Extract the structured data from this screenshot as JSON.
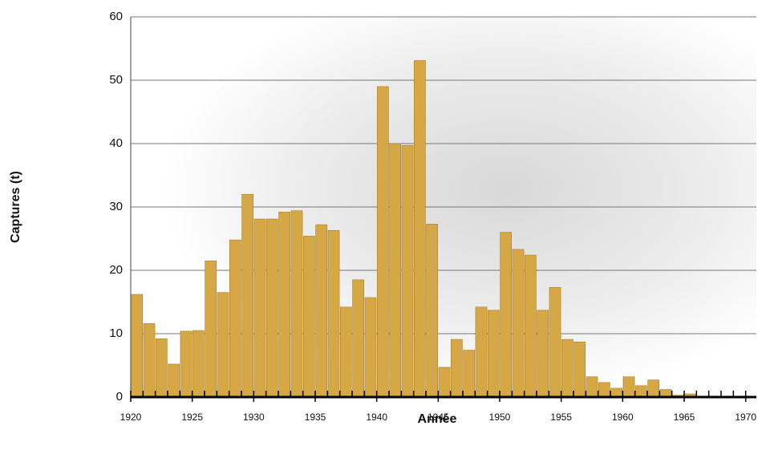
{
  "chart_data": {
    "type": "bar",
    "x_label": "Année",
    "y_label": "Captures (t)",
    "x": [
      1920,
      1921,
      1922,
      1923,
      1924,
      1925,
      1926,
      1927,
      1928,
      1929,
      1930,
      1931,
      1932,
      1933,
      1934,
      1935,
      1936,
      1937,
      1938,
      1939,
      1940,
      1941,
      1942,
      1943,
      1944,
      1945,
      1946,
      1947,
      1948,
      1949,
      1950,
      1951,
      1952,
      1953,
      1954,
      1955,
      1956,
      1957,
      1958,
      1959,
      1960,
      1961,
      1962,
      1963,
      1964,
      1965
    ],
    "values": [
      16.2,
      11.6,
      9.2,
      5.2,
      10.4,
      10.5,
      21.5,
      16.5,
      24.8,
      32,
      28.1,
      28.1,
      29.2,
      29.4,
      25.4,
      27.2,
      26.3,
      14.2,
      18.5,
      15.7,
      49,
      40,
      39.7,
      53.1,
      27.3,
      4.7,
      9.1,
      7.4,
      14.2,
      13.7,
      26,
      23.3,
      22.4,
      13.7,
      17.3,
      9.1,
      8.7,
      3.2,
      2.3,
      1.4,
      3.2,
      1.8,
      2.7,
      1.2,
      0.3,
      0.5
    ],
    "color": "#d6a845",
    "xlim": [
      1920,
      1971
    ],
    "xticks": [
      1920,
      1925,
      1930,
      1935,
      1940,
      1945,
      1950,
      1955,
      1960,
      1965,
      1970
    ],
    "xminorticks": [
      1920,
      1921,
      1922,
      1923,
      1924,
      1925,
      1926,
      1927,
      1928,
      1929,
      1930,
      1931,
      1932,
      1933,
      1934,
      1935,
      1936,
      1937,
      1938,
      1939,
      1940,
      1941,
      1942,
      1943,
      1944,
      1945,
      1946,
      1947,
      1948,
      1949,
      1950,
      1951,
      1952,
      1953,
      1954,
      1955,
      1956,
      1957,
      1958,
      1959,
      1960,
      1961,
      1962,
      1963,
      1964,
      1965,
      1966,
      1967,
      1968,
      1969,
      1970
    ],
    "ylim": [
      0,
      60
    ],
    "yticks": [
      0,
      10,
      20,
      30,
      40,
      50,
      60
    ],
    "grid": true
  }
}
